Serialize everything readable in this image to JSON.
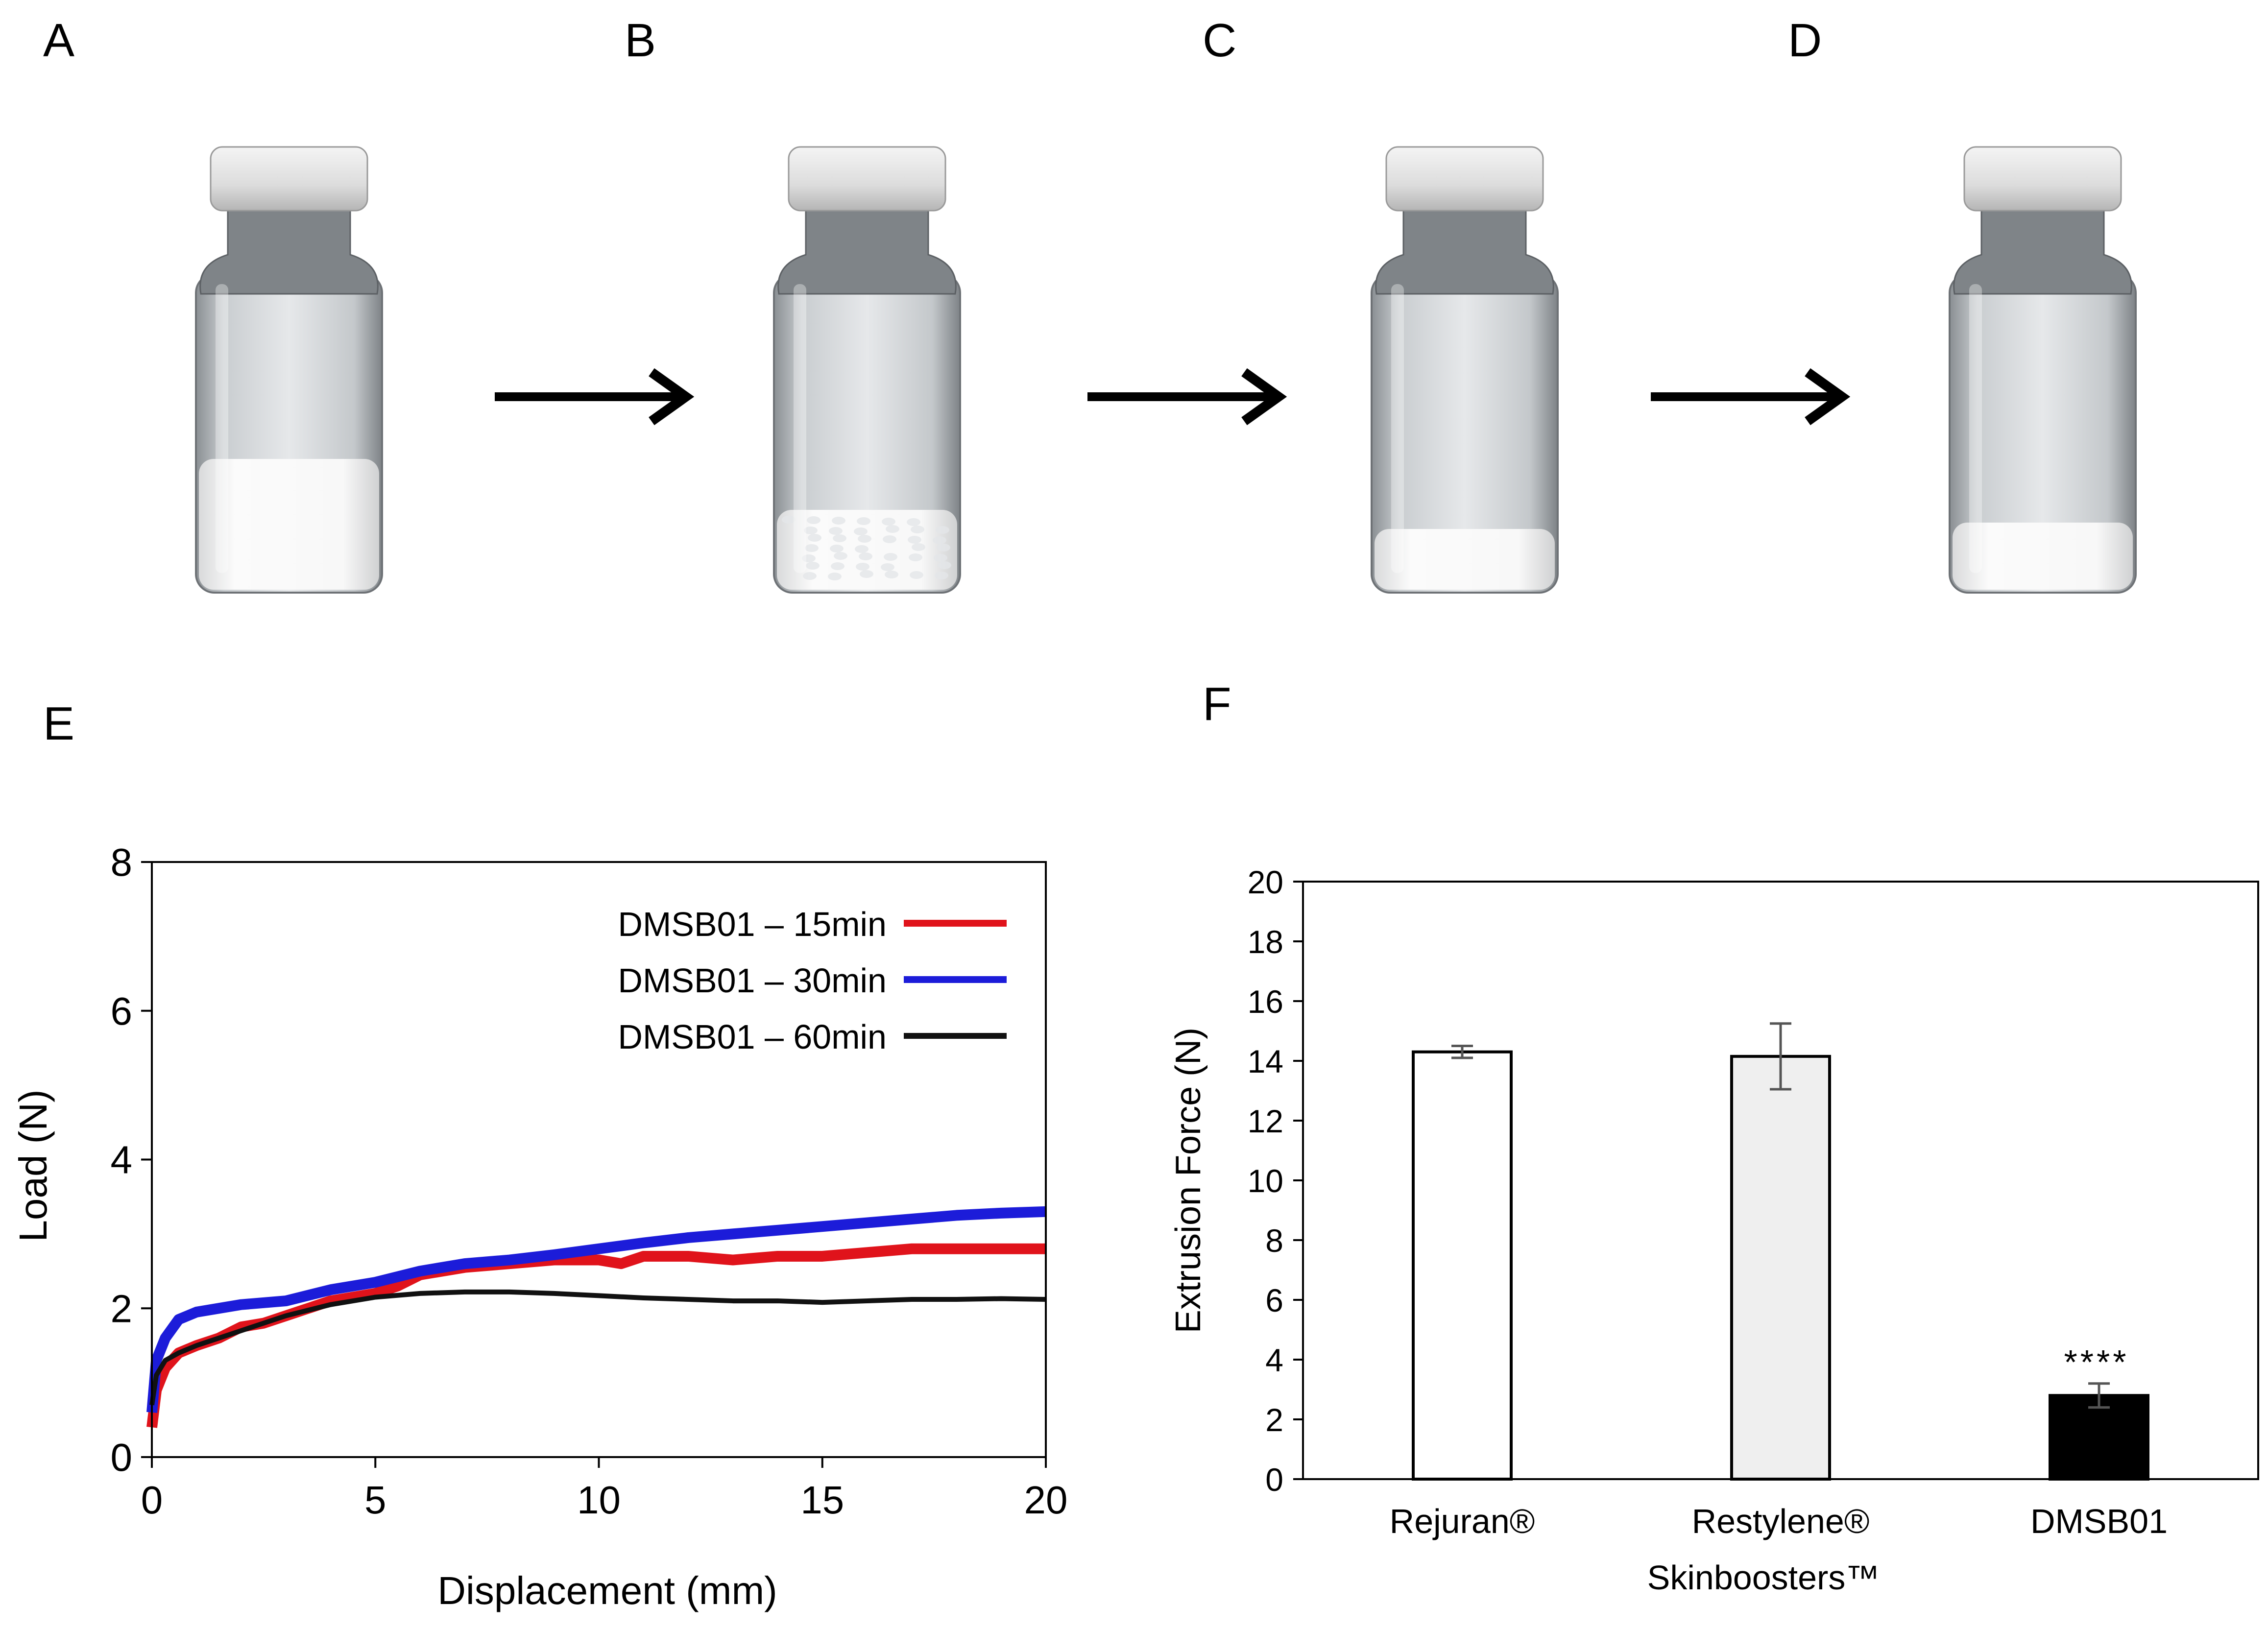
{
  "panel_labels": {
    "a": "A",
    "b": "B",
    "c": "C",
    "d": "D",
    "e": "E",
    "f": "F"
  },
  "vials": [
    {
      "name": "vial-a",
      "white_fraction": 0.42,
      "texture": "smooth"
    },
    {
      "name": "vial-b",
      "white_fraction": 0.26,
      "texture": "flaky"
    },
    {
      "name": "vial-c",
      "white_fraction": 0.2,
      "texture": "smooth"
    },
    {
      "name": "vial-d",
      "white_fraction": 0.22,
      "texture": "smooth"
    }
  ],
  "colors": {
    "red": "#e0131b",
    "blue": "#1c1cd9",
    "black": "#111111",
    "bar_rejuran": "#ffffff",
    "bar_restylene": "#efefef",
    "bar_dmsb01": "#000000",
    "axis": "#000000",
    "error_bar": "#555555"
  },
  "chart_data": [
    {
      "type": "line",
      "xlabel": "Displacement (mm)",
      "ylabel": "Load (N)",
      "xlim": [
        0,
        20
      ],
      "ylim": [
        0,
        8
      ],
      "xticks": [
        0,
        5,
        10,
        15,
        20
      ],
      "yticks": [
        0,
        2,
        4,
        6,
        8
      ],
      "legend_position": "top-right",
      "series": [
        {
          "name": "DMSB01 – 15min",
          "color": "#e0131b",
          "points": [
            [
              0,
              0.4
            ],
            [
              0.1,
              0.9
            ],
            [
              0.3,
              1.2
            ],
            [
              0.6,
              1.4
            ],
            [
              1,
              1.5
            ],
            [
              1.5,
              1.6
            ],
            [
              2,
              1.75
            ],
            [
              2.5,
              1.8
            ],
            [
              3,
              1.9
            ],
            [
              3.5,
              2.0
            ],
            [
              4,
              2.1
            ],
            [
              4.5,
              2.15
            ],
            [
              5,
              2.2
            ],
            [
              5.5,
              2.3
            ],
            [
              6,
              2.45
            ],
            [
              7,
              2.55
            ],
            [
              8,
              2.6
            ],
            [
              9,
              2.65
            ],
            [
              10,
              2.65
            ],
            [
              10.5,
              2.6
            ],
            [
              11,
              2.7
            ],
            [
              12,
              2.7
            ],
            [
              13,
              2.65
            ],
            [
              14,
              2.7
            ],
            [
              15,
              2.7
            ],
            [
              16,
              2.75
            ],
            [
              17,
              2.8
            ],
            [
              18,
              2.8
            ],
            [
              19,
              2.8
            ],
            [
              20,
              2.8
            ]
          ]
        },
        {
          "name": "DMSB01 – 30min",
          "color": "#1c1cd9",
          "points": [
            [
              0,
              0.6
            ],
            [
              0.1,
              1.3
            ],
            [
              0.3,
              1.6
            ],
            [
              0.6,
              1.85
            ],
            [
              1,
              1.95
            ],
            [
              2,
              2.05
            ],
            [
              3,
              2.1
            ],
            [
              4,
              2.25
            ],
            [
              5,
              2.35
            ],
            [
              6,
              2.5
            ],
            [
              7,
              2.6
            ],
            [
              8,
              2.65
            ],
            [
              9,
              2.72
            ],
            [
              10,
              2.8
            ],
            [
              11,
              2.88
            ],
            [
              12,
              2.95
            ],
            [
              13,
              3.0
            ],
            [
              14,
              3.05
            ],
            [
              15,
              3.1
            ],
            [
              16,
              3.15
            ],
            [
              17,
              3.2
            ],
            [
              18,
              3.25
            ],
            [
              19,
              3.28
            ],
            [
              20,
              3.3
            ]
          ]
        },
        {
          "name": "DMSB01 – 60min",
          "color": "#111111",
          "points": [
            [
              0,
              0.7
            ],
            [
              0.1,
              1.1
            ],
            [
              0.3,
              1.3
            ],
            [
              0.6,
              1.4
            ],
            [
              1,
              1.5
            ],
            [
              1.5,
              1.6
            ],
            [
              2,
              1.7
            ],
            [
              3,
              1.9
            ],
            [
              4,
              2.05
            ],
            [
              5,
              2.15
            ],
            [
              6,
              2.2
            ],
            [
              7,
              2.22
            ],
            [
              8,
              2.22
            ],
            [
              9,
              2.2
            ],
            [
              10,
              2.17
            ],
            [
              11,
              2.14
            ],
            [
              12,
              2.12
            ],
            [
              13,
              2.1
            ],
            [
              14,
              2.1
            ],
            [
              15,
              2.08
            ],
            [
              16,
              2.1
            ],
            [
              17,
              2.12
            ],
            [
              18,
              2.12
            ],
            [
              19,
              2.13
            ],
            [
              20,
              2.12
            ]
          ]
        }
      ]
    },
    {
      "type": "bar",
      "ylabel": "Extrusion Force (N)",
      "ylim": [
        0,
        20
      ],
      "yticks": [
        0,
        2,
        4,
        6,
        8,
        10,
        12,
        14,
        16,
        18,
        20
      ],
      "categories": [
        {
          "line1": "Rejuran®",
          "line2": ""
        },
        {
          "line1": "Restylene®",
          "line2": "Skinboosters™"
        },
        {
          "line1": "DMSB01",
          "line2": ""
        }
      ],
      "values": [
        14.3,
        14.15,
        2.8
      ],
      "errors": [
        0.2,
        1.1,
        0.4
      ],
      "fill_colors": [
        "#ffffff",
        "#efefef",
        "#000000"
      ],
      "annotations": [
        "",
        "",
        "****"
      ]
    }
  ]
}
